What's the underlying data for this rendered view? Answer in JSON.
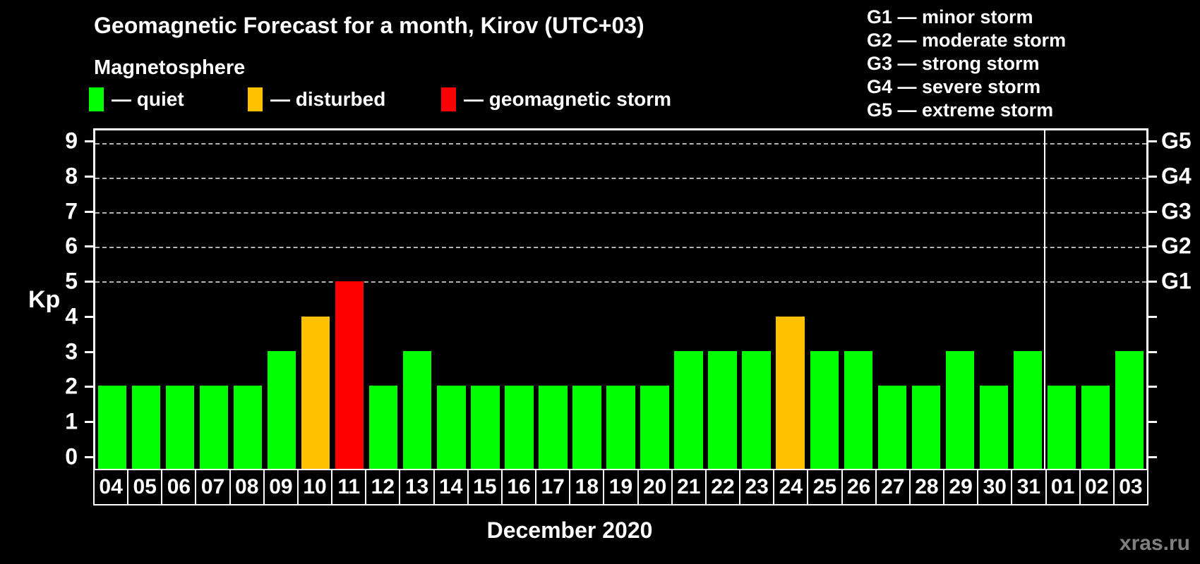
{
  "header": {
    "title": "Geomagnetic Forecast for a month, Kirov (UTC+03)",
    "subtitle": "Magnetosphere"
  },
  "legend": [
    {
      "id": "quiet",
      "label": "— quiet",
      "color": "#00ff00"
    },
    {
      "id": "disturbed",
      "label": "— disturbed",
      "color": "#ffc000"
    },
    {
      "id": "storm",
      "label": "— geomagnetic storm",
      "color": "#ff0000"
    }
  ],
  "g_legend": [
    {
      "label": "G1 — minor storm"
    },
    {
      "label": "G2 — moderate storm"
    },
    {
      "label": "G3 — strong storm"
    },
    {
      "label": "G4 — severe storm"
    },
    {
      "label": "G5 — extreme storm"
    }
  ],
  "chart_data": {
    "type": "bar",
    "title": "Geomagnetic Forecast for a month, Kirov (UTC+03)",
    "ylabel": "Kp",
    "xlabel": "December 2020",
    "categories": [
      "04",
      "05",
      "06",
      "07",
      "08",
      "09",
      "10",
      "11",
      "12",
      "13",
      "14",
      "15",
      "16",
      "17",
      "18",
      "19",
      "20",
      "21",
      "22",
      "23",
      "24",
      "25",
      "26",
      "27",
      "28",
      "29",
      "30",
      "31",
      "01",
      "02",
      "03"
    ],
    "values": [
      2,
      2,
      2,
      2,
      2,
      3,
      4,
      5,
      2,
      3,
      2,
      2,
      2,
      2,
      2,
      2,
      2,
      3,
      3,
      3,
      4,
      3,
      3,
      2,
      2,
      3,
      2,
      3,
      2,
      2,
      3
    ],
    "statuses": [
      "quiet",
      "quiet",
      "quiet",
      "quiet",
      "quiet",
      "quiet",
      "disturbed",
      "storm",
      "quiet",
      "quiet",
      "quiet",
      "quiet",
      "quiet",
      "quiet",
      "quiet",
      "quiet",
      "quiet",
      "quiet",
      "quiet",
      "quiet",
      "disturbed",
      "quiet",
      "quiet",
      "quiet",
      "quiet",
      "quiet",
      "quiet",
      "quiet",
      "quiet",
      "quiet",
      "quiet"
    ],
    "status_colors": {
      "quiet": "#00ff00",
      "disturbed": "#ffc000",
      "storm": "#ff0000"
    },
    "ylim": [
      -0.4,
      9.36
    ],
    "yticks": [
      0,
      1,
      2,
      3,
      4,
      5,
      6,
      7,
      8,
      9
    ],
    "gridlines": [
      5,
      6,
      7,
      8,
      9
    ],
    "grid_style": "dashed",
    "right_axis": [
      {
        "value": 5,
        "label": "G1"
      },
      {
        "value": 6,
        "label": "G2"
      },
      {
        "value": 7,
        "label": "G3"
      },
      {
        "value": 8,
        "label": "G4"
      },
      {
        "value": 9,
        "label": "G5"
      }
    ],
    "month_separator_after": "31",
    "legend_position": "top-left"
  },
  "footer": {
    "xlabel": "December 2020",
    "watermark": "xras.ru"
  }
}
